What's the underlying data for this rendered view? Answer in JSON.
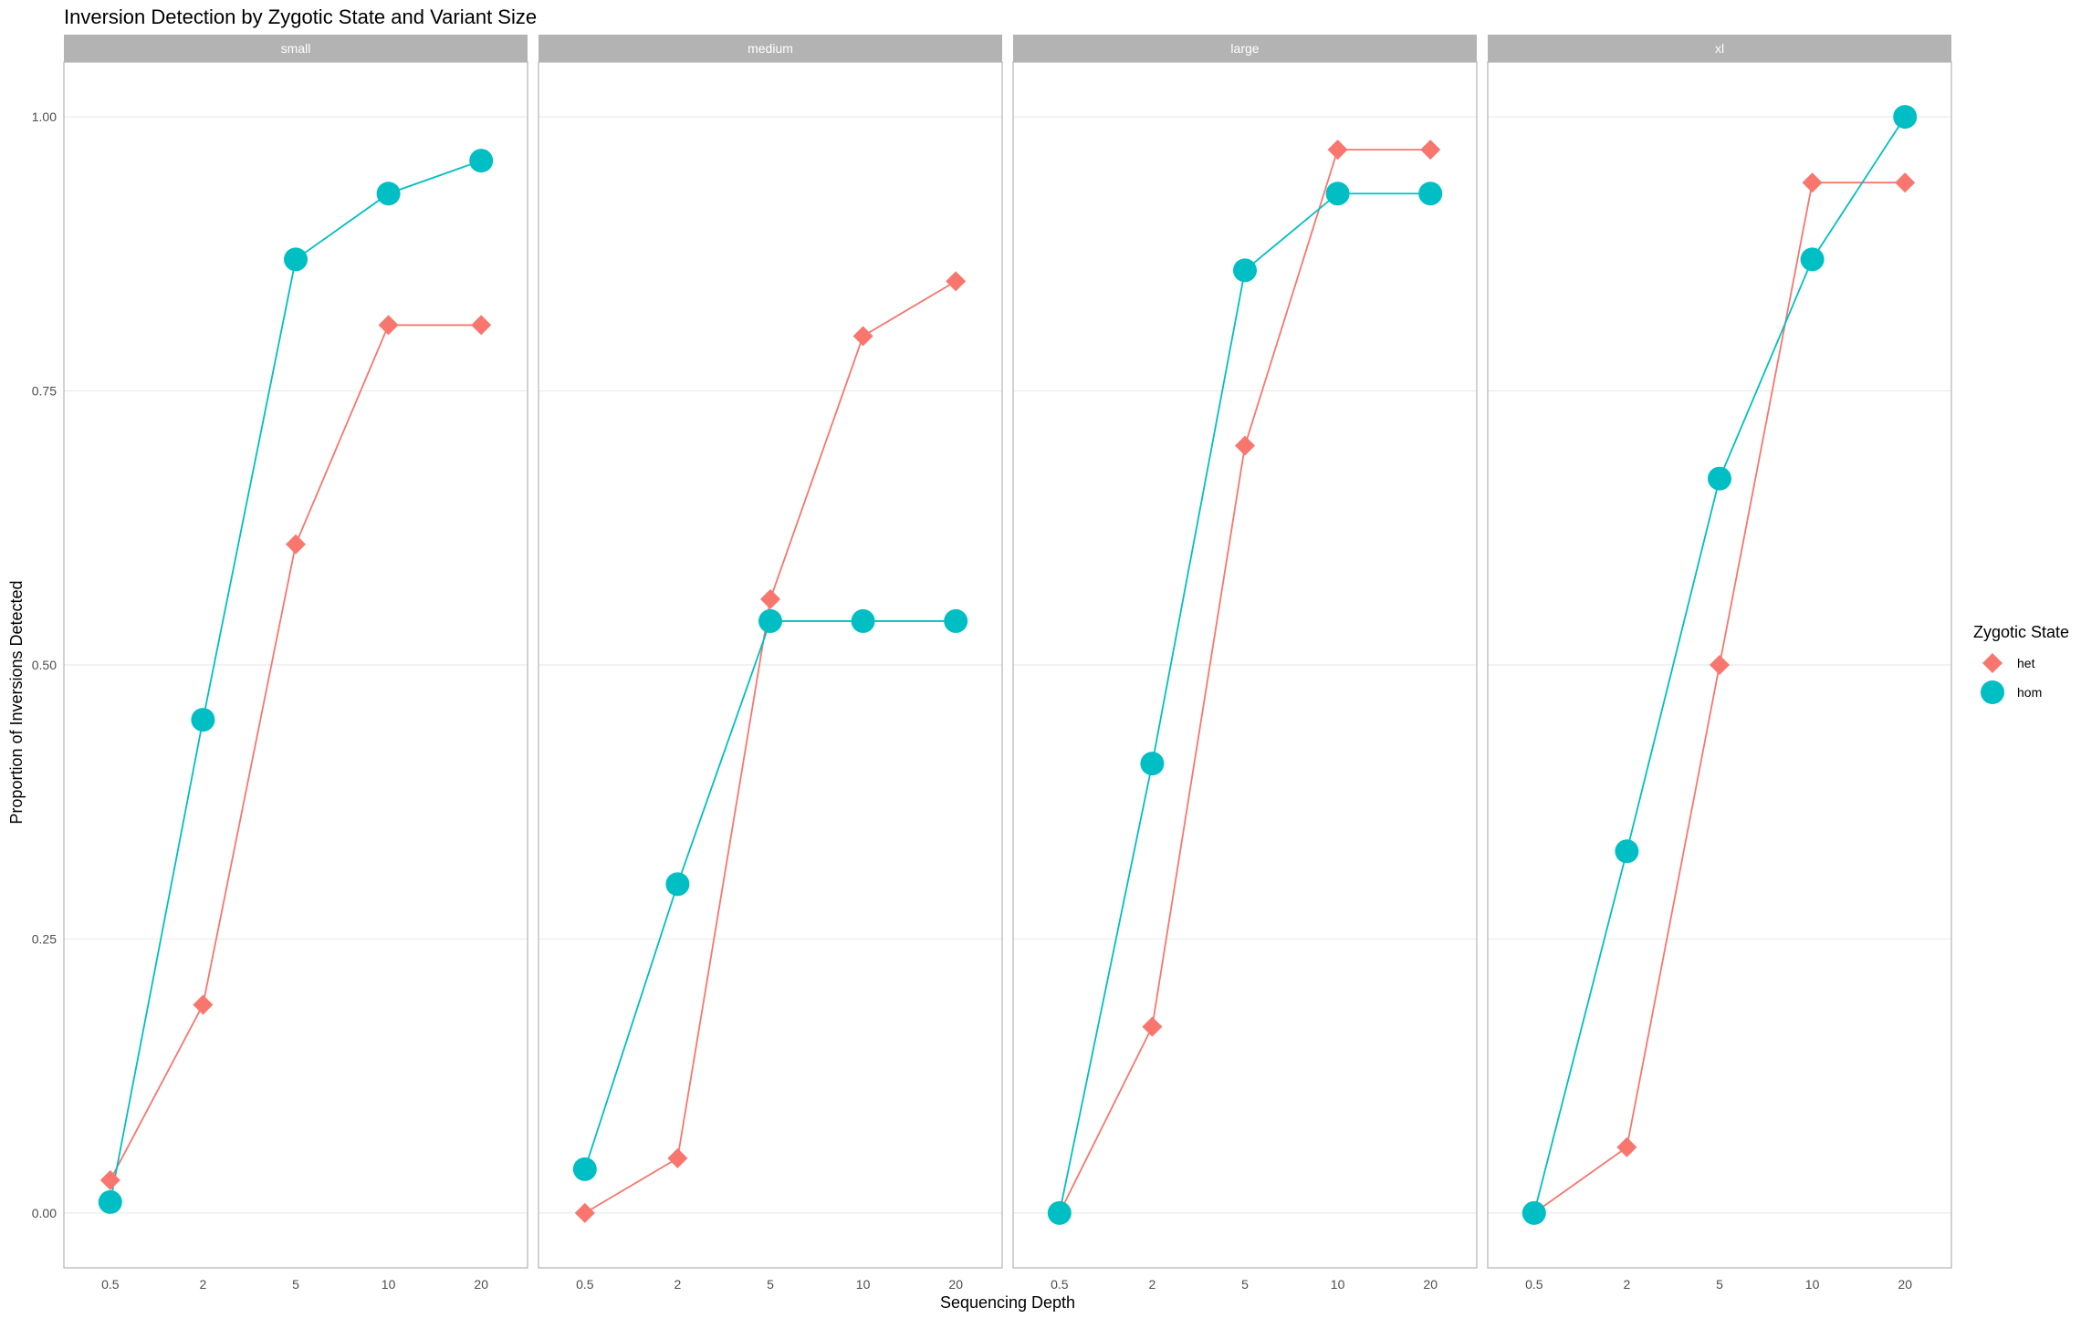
{
  "chart_data": {
    "type": "line",
    "title": "Inversion Detection by Zygotic State and Variant Size",
    "xlabel": "Sequencing Depth",
    "ylabel": "Proportion of Inversions Detected",
    "categories": [
      "0.5",
      "2",
      "5",
      "10",
      "20"
    ],
    "ylim": [
      -0.05,
      1.05
    ],
    "yticks": [
      0.0,
      0.25,
      0.5,
      0.75,
      1.0
    ],
    "ytick_labels": [
      "0.00",
      "0.25",
      "0.50",
      "0.75",
      "1.00"
    ],
    "grid": true,
    "legend": {
      "title": "Zygotic State",
      "placement": "right",
      "entries": [
        {
          "label": "het",
          "color": "#F8766D",
          "shape": "diamond"
        },
        {
          "label": "hom",
          "color": "#00BFC4",
          "shape": "circle"
        }
      ]
    },
    "panels": [
      {
        "label": "small",
        "series": [
          {
            "name": "het",
            "values": [
              0.03,
              0.19,
              0.61,
              0.81,
              0.81
            ]
          },
          {
            "name": "hom",
            "values": [
              0.01,
              0.45,
              0.87,
              0.93,
              0.96
            ]
          }
        ]
      },
      {
        "label": "medium",
        "series": [
          {
            "name": "het",
            "values": [
              0.0,
              0.05,
              0.56,
              0.8,
              0.85
            ]
          },
          {
            "name": "hom",
            "values": [
              0.04,
              0.3,
              0.54,
              0.54,
              0.54
            ]
          }
        ]
      },
      {
        "label": "large",
        "series": [
          {
            "name": "het",
            "values": [
              0.0,
              0.17,
              0.7,
              0.97,
              0.97
            ]
          },
          {
            "name": "hom",
            "values": [
              0.0,
              0.41,
              0.86,
              0.93,
              0.93
            ]
          }
        ]
      },
      {
        "label": "xl",
        "series": [
          {
            "name": "het",
            "values": [
              0.0,
              0.06,
              0.5,
              0.94,
              0.94
            ]
          },
          {
            "name": "hom",
            "values": [
              0.0,
              0.33,
              0.67,
              0.87,
              1.0
            ]
          }
        ]
      }
    ]
  }
}
